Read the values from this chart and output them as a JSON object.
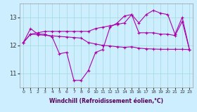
{
  "x": [
    0,
    1,
    2,
    3,
    4,
    5,
    6,
    7,
    8,
    9,
    10,
    11,
    12,
    13,
    14,
    15,
    16,
    17,
    18,
    19,
    20,
    21,
    22,
    23
  ],
  "line_jagged": [
    12.1,
    12.6,
    12.4,
    12.4,
    12.3,
    11.7,
    11.75,
    10.75,
    10.75,
    11.1,
    11.75,
    11.85,
    12.65,
    12.8,
    13.05,
    13.1,
    12.45,
    12.45,
    12.45,
    12.4,
    12.4,
    12.35,
    12.85,
    11.85
  ],
  "line_flat": [
    12.1,
    12.4,
    12.38,
    12.36,
    12.34,
    12.32,
    12.3,
    12.28,
    12.26,
    12.1,
    12.05,
    12.0,
    11.98,
    11.95,
    11.93,
    11.95,
    11.9,
    11.88,
    11.87,
    11.86,
    11.86,
    11.86,
    11.86,
    11.85
  ],
  "line_rise": [
    12.1,
    12.4,
    12.45,
    12.5,
    12.5,
    12.5,
    12.5,
    12.5,
    12.5,
    12.5,
    12.6,
    12.65,
    12.7,
    12.75,
    12.8,
    13.1,
    12.8,
    13.1,
    13.25,
    13.15,
    13.1,
    12.4,
    13.0,
    11.85
  ],
  "color": "#aa00aa",
  "bg_color": "#cceeff",
  "grid_color": "#aadddd",
  "xlabel": "Windchill (Refroidissement éolien,°C)",
  "ylim": [
    10.5,
    13.5
  ],
  "xlim": [
    -0.5,
    23.5
  ],
  "yticks": [
    11,
    12,
    13
  ],
  "xtick_labels": [
    "0",
    "1",
    "2",
    "3",
    "4",
    "5",
    "6",
    "7",
    "8",
    "9",
    "10",
    "11",
    "12",
    "13",
    "14",
    "15",
    "16",
    "17",
    "18",
    "19",
    "20",
    "21",
    "22",
    "23"
  ]
}
